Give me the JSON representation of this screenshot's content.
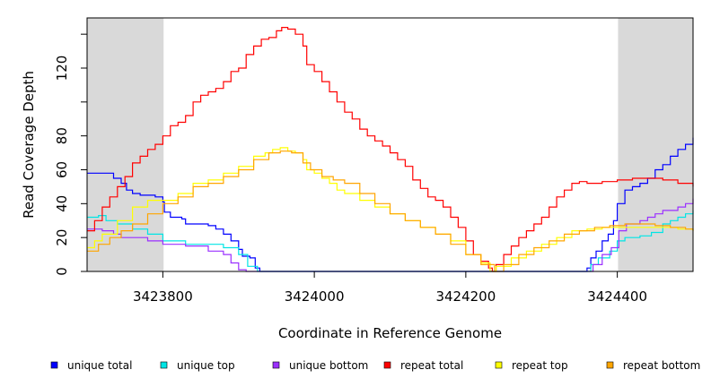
{
  "chart_data": {
    "type": "line",
    "xlabel": "Coordinate in Reference Genome",
    "ylabel": "Read Coverage Depth",
    "xlim": [
      3423700,
      3424500
    ],
    "ylim": [
      0,
      145
    ],
    "x_ticks": [
      3423800,
      3424000,
      3424200,
      3424400
    ],
    "y_ticks": [
      0,
      20,
      40,
      60,
      80,
      100,
      120
    ],
    "y_tick_labels": [
      "0",
      "20",
      "40",
      "60",
      "80",
      "",
      "120"
    ],
    "shaded_regions": [
      [
        3423700,
        3423801
      ],
      [
        3424401,
        3424500
      ]
    ],
    "series": [
      {
        "name": "unique total",
        "color": "#0000ff",
        "points": [
          [
            3423700,
            58
          ],
          [
            3423728,
            58
          ],
          [
            3423735,
            55
          ],
          [
            3423745,
            52
          ],
          [
            3423752,
            48
          ],
          [
            3423760,
            46
          ],
          [
            3423770,
            45
          ],
          [
            3423790,
            44
          ],
          [
            3423800,
            41
          ],
          [
            3423802,
            35
          ],
          [
            3423810,
            32
          ],
          [
            3423825,
            31
          ],
          [
            3423830,
            28
          ],
          [
            3423860,
            27
          ],
          [
            3423870,
            25
          ],
          [
            3423880,
            22
          ],
          [
            3423890,
            18
          ],
          [
            3423900,
            13
          ],
          [
            3423905,
            9
          ],
          [
            3423915,
            8
          ],
          [
            3423922,
            2
          ],
          [
            3423928,
            0
          ],
          [
            3424350,
            0
          ],
          [
            3424360,
            2
          ],
          [
            3424365,
            8
          ],
          [
            3424372,
            12
          ],
          [
            3424380,
            18
          ],
          [
            3424388,
            22
          ],
          [
            3424395,
            30
          ],
          [
            3424400,
            40
          ],
          [
            3424410,
            48
          ],
          [
            3424420,
            50
          ],
          [
            3424430,
            52
          ],
          [
            3424440,
            55
          ],
          [
            3424450,
            60
          ],
          [
            3424460,
            63
          ],
          [
            3424470,
            68
          ],
          [
            3424480,
            72
          ],
          [
            3424490,
            75
          ],
          [
            3424500,
            79
          ]
        ]
      },
      {
        "name": "unique top",
        "color": "#00e5e5",
        "points": [
          [
            3423700,
            32
          ],
          [
            3423715,
            33
          ],
          [
            3423725,
            30
          ],
          [
            3423740,
            28
          ],
          [
            3423760,
            25
          ],
          [
            3423780,
            22
          ],
          [
            3423800,
            18
          ],
          [
            3423830,
            16
          ],
          [
            3423880,
            14
          ],
          [
            3423900,
            10
          ],
          [
            3423912,
            3
          ],
          [
            3423925,
            0
          ],
          [
            3424355,
            0
          ],
          [
            3424365,
            4
          ],
          [
            3424375,
            8
          ],
          [
            3424390,
            12
          ],
          [
            3424400,
            18
          ],
          [
            3424410,
            20
          ],
          [
            3424430,
            21
          ],
          [
            3424445,
            23
          ],
          [
            3424460,
            28
          ],
          [
            3424470,
            30
          ],
          [
            3424480,
            32
          ],
          [
            3424490,
            34
          ],
          [
            3424500,
            36
          ]
        ]
      },
      {
        "name": "unique bottom",
        "color": "#9b30ff",
        "points": [
          [
            3423700,
            25
          ],
          [
            3423720,
            24
          ],
          [
            3423735,
            22
          ],
          [
            3423745,
            20
          ],
          [
            3423780,
            18
          ],
          [
            3423800,
            16
          ],
          [
            3423830,
            15
          ],
          [
            3423860,
            12
          ],
          [
            3423880,
            10
          ],
          [
            3423890,
            5
          ],
          [
            3423900,
            1
          ],
          [
            3423910,
            0
          ],
          [
            3424355,
            0
          ],
          [
            3424368,
            4
          ],
          [
            3424380,
            10
          ],
          [
            3424392,
            14
          ],
          [
            3424402,
            24
          ],
          [
            3424412,
            28
          ],
          [
            3424430,
            30
          ],
          [
            3424440,
            32
          ],
          [
            3424450,
            34
          ],
          [
            3424460,
            36
          ],
          [
            3424480,
            38
          ],
          [
            3424490,
            40
          ],
          [
            3424500,
            43
          ]
        ]
      },
      {
        "name": "repeat total",
        "color": "#ff0000",
        "points": [
          [
            3423700,
            24
          ],
          [
            3423710,
            30
          ],
          [
            3423720,
            38
          ],
          [
            3423730,
            44
          ],
          [
            3423740,
            50
          ],
          [
            3423750,
            56
          ],
          [
            3423760,
            64
          ],
          [
            3423770,
            68
          ],
          [
            3423780,
            72
          ],
          [
            3423790,
            75
          ],
          [
            3423800,
            80
          ],
          [
            3423810,
            86
          ],
          [
            3423820,
            88
          ],
          [
            3423830,
            92
          ],
          [
            3423840,
            100
          ],
          [
            3423850,
            104
          ],
          [
            3423860,
            106
          ],
          [
            3423870,
            108
          ],
          [
            3423880,
            112
          ],
          [
            3423890,
            118
          ],
          [
            3423900,
            120
          ],
          [
            3423910,
            128
          ],
          [
            3423920,
            133
          ],
          [
            3423930,
            137
          ],
          [
            3423940,
            138
          ],
          [
            3423950,
            142
          ],
          [
            3423957,
            144
          ],
          [
            3423965,
            143
          ],
          [
            3423975,
            140
          ],
          [
            3423985,
            133
          ],
          [
            3423990,
            122
          ],
          [
            3424000,
            118
          ],
          [
            3424010,
            112
          ],
          [
            3424020,
            106
          ],
          [
            3424030,
            100
          ],
          [
            3424040,
            94
          ],
          [
            3424050,
            90
          ],
          [
            3424060,
            84
          ],
          [
            3424070,
            80
          ],
          [
            3424080,
            77
          ],
          [
            3424090,
            74
          ],
          [
            3424100,
            70
          ],
          [
            3424110,
            66
          ],
          [
            3424120,
            62
          ],
          [
            3424130,
            54
          ],
          [
            3424140,
            49
          ],
          [
            3424150,
            44
          ],
          [
            3424160,
            42
          ],
          [
            3424170,
            38
          ],
          [
            3424180,
            32
          ],
          [
            3424190,
            26
          ],
          [
            3424200,
            18
          ],
          [
            3424210,
            10
          ],
          [
            3424220,
            6
          ],
          [
            3424230,
            2
          ],
          [
            3424235,
            0
          ],
          [
            3424240,
            4
          ],
          [
            3424250,
            10
          ],
          [
            3424260,
            15
          ],
          [
            3424270,
            20
          ],
          [
            3424280,
            24
          ],
          [
            3424290,
            28
          ],
          [
            3424300,
            32
          ],
          [
            3424310,
            38
          ],
          [
            3424320,
            44
          ],
          [
            3424330,
            48
          ],
          [
            3424340,
            52
          ],
          [
            3424350,
            53
          ],
          [
            3424360,
            52
          ],
          [
            3424370,
            52
          ],
          [
            3424380,
            53
          ],
          [
            3424390,
            53
          ],
          [
            3424400,
            54
          ],
          [
            3424420,
            55
          ],
          [
            3424440,
            55
          ],
          [
            3424460,
            54
          ],
          [
            3424480,
            52
          ],
          [
            3424500,
            50
          ]
        ]
      },
      {
        "name": "repeat top",
        "color": "#ffff00",
        "points": [
          [
            3423700,
            14
          ],
          [
            3423710,
            18
          ],
          [
            3423720,
            22
          ],
          [
            3423740,
            30
          ],
          [
            3423760,
            38
          ],
          [
            3423780,
            42
          ],
          [
            3423800,
            42
          ],
          [
            3423820,
            46
          ],
          [
            3423840,
            52
          ],
          [
            3423860,
            54
          ],
          [
            3423880,
            58
          ],
          [
            3423900,
            62
          ],
          [
            3423920,
            68
          ],
          [
            3423935,
            70
          ],
          [
            3423945,
            72
          ],
          [
            3423955,
            73
          ],
          [
            3423965,
            71
          ],
          [
            3423975,
            70
          ],
          [
            3423985,
            66
          ],
          [
            3423990,
            60
          ],
          [
            3424000,
            58
          ],
          [
            3424010,
            55
          ],
          [
            3424020,
            52
          ],
          [
            3424030,
            48
          ],
          [
            3424040,
            46
          ],
          [
            3424060,
            42
          ],
          [
            3424080,
            38
          ],
          [
            3424100,
            34
          ],
          [
            3424120,
            30
          ],
          [
            3424140,
            26
          ],
          [
            3424160,
            22
          ],
          [
            3424180,
            18
          ],
          [
            3424200,
            10
          ],
          [
            3424220,
            5
          ],
          [
            3424232,
            0
          ],
          [
            3424240,
            3
          ],
          [
            3424260,
            8
          ],
          [
            3424280,
            12
          ],
          [
            3424300,
            16
          ],
          [
            3424320,
            20
          ],
          [
            3424340,
            24
          ],
          [
            3424360,
            25
          ],
          [
            3424380,
            26
          ],
          [
            3424400,
            26
          ],
          [
            3424420,
            26
          ],
          [
            3424440,
            26
          ],
          [
            3424460,
            26
          ],
          [
            3424480,
            25
          ],
          [
            3424500,
            24
          ]
        ]
      },
      {
        "name": "repeat bottom",
        "color": "#ffa500",
        "points": [
          [
            3423700,
            12
          ],
          [
            3423715,
            16
          ],
          [
            3423730,
            20
          ],
          [
            3423745,
            24
          ],
          [
            3423760,
            28
          ],
          [
            3423780,
            34
          ],
          [
            3423800,
            40
          ],
          [
            3423820,
            44
          ],
          [
            3423840,
            50
          ],
          [
            3423860,
            52
          ],
          [
            3423880,
            56
          ],
          [
            3423900,
            60
          ],
          [
            3423920,
            66
          ],
          [
            3423940,
            70
          ],
          [
            3423955,
            71
          ],
          [
            3423970,
            70
          ],
          [
            3423985,
            64
          ],
          [
            3423995,
            60
          ],
          [
            3424010,
            56
          ],
          [
            3424025,
            54
          ],
          [
            3424040,
            52
          ],
          [
            3424060,
            46
          ],
          [
            3424080,
            40
          ],
          [
            3424100,
            34
          ],
          [
            3424120,
            30
          ],
          [
            3424140,
            26
          ],
          [
            3424160,
            22
          ],
          [
            3424180,
            16
          ],
          [
            3424200,
            10
          ],
          [
            3424220,
            4
          ],
          [
            3424238,
            0
          ],
          [
            3424250,
            4
          ],
          [
            3424270,
            10
          ],
          [
            3424290,
            14
          ],
          [
            3424310,
            18
          ],
          [
            3424330,
            22
          ],
          [
            3424350,
            24
          ],
          [
            3424370,
            26
          ],
          [
            3424390,
            27
          ],
          [
            3424410,
            28
          ],
          [
            3424430,
            28
          ],
          [
            3424450,
            27
          ],
          [
            3424470,
            26
          ],
          [
            3424490,
            25
          ],
          [
            3424500,
            24
          ]
        ]
      }
    ]
  }
}
